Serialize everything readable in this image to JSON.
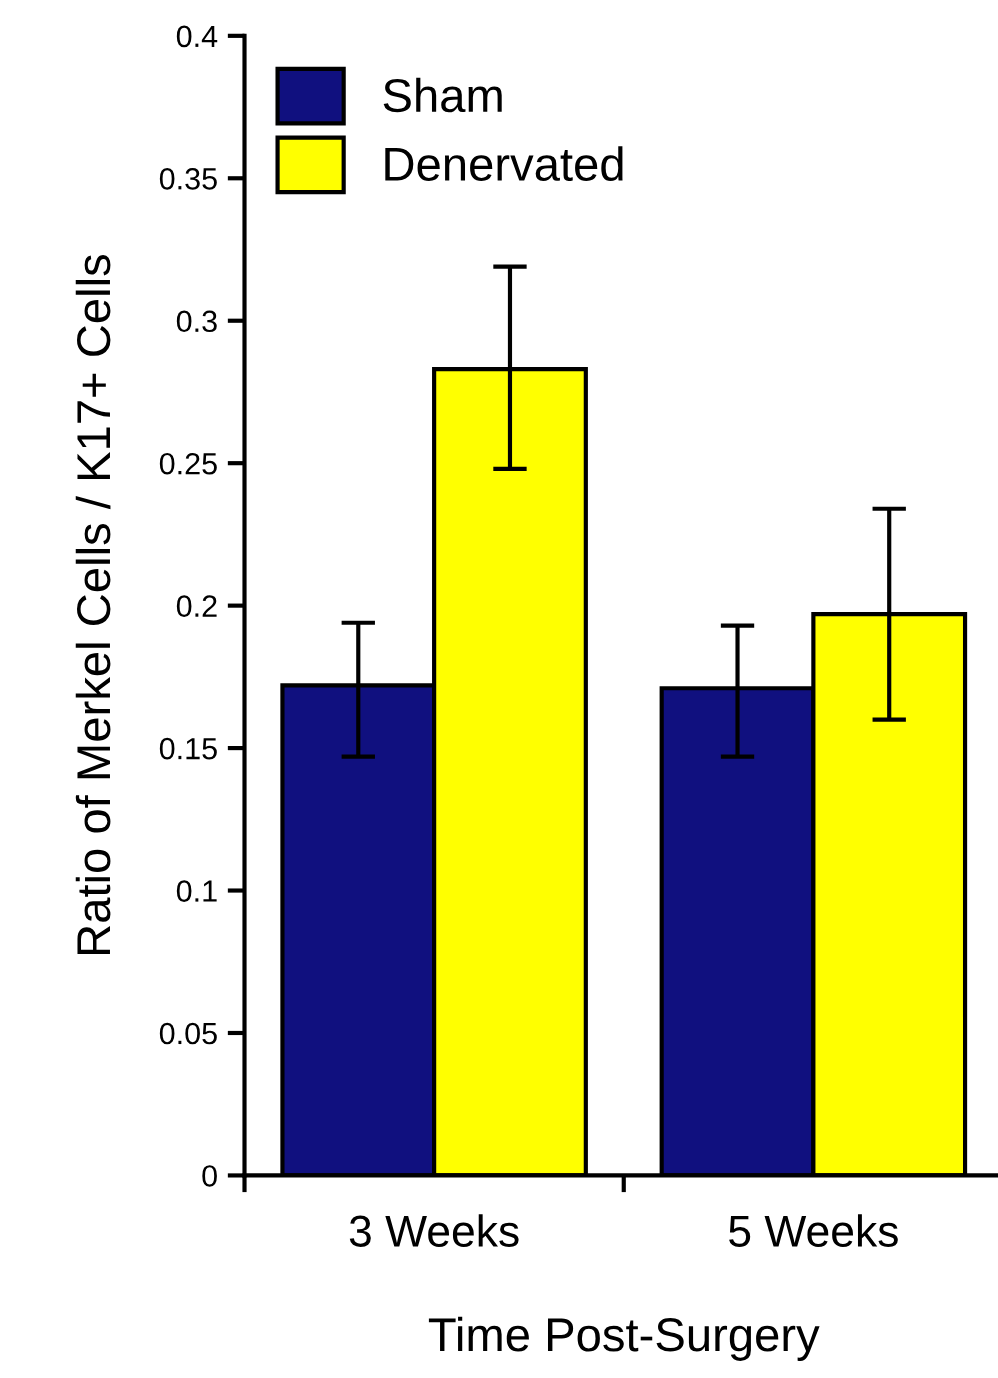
{
  "chart_data": {
    "type": "bar",
    "xlabel": "Time Post-Surgery",
    "ylabel": "Ratio of Merkel Cells / K17+ Cells",
    "categories": [
      "3 Weeks",
      "5 Weeks"
    ],
    "series": [
      {
        "name": "Sham",
        "color": "#10107f",
        "values": [
          0.172,
          0.171
        ],
        "errors": [
          [
            0.147,
            0.194
          ],
          [
            0.147,
            0.193
          ]
        ]
      },
      {
        "name": "Denervated",
        "color": "#ffff00",
        "values": [
          0.283,
          0.197
        ],
        "errors": [
          [
            0.248,
            0.319
          ],
          [
            0.16,
            0.234
          ]
        ]
      }
    ],
    "ylim": [
      0,
      0.4
    ],
    "yticks": [
      0,
      0.05,
      0.1,
      0.15,
      0.2,
      0.25,
      0.3,
      0.35,
      0.4
    ],
    "grid": false,
    "legend": "top left"
  }
}
